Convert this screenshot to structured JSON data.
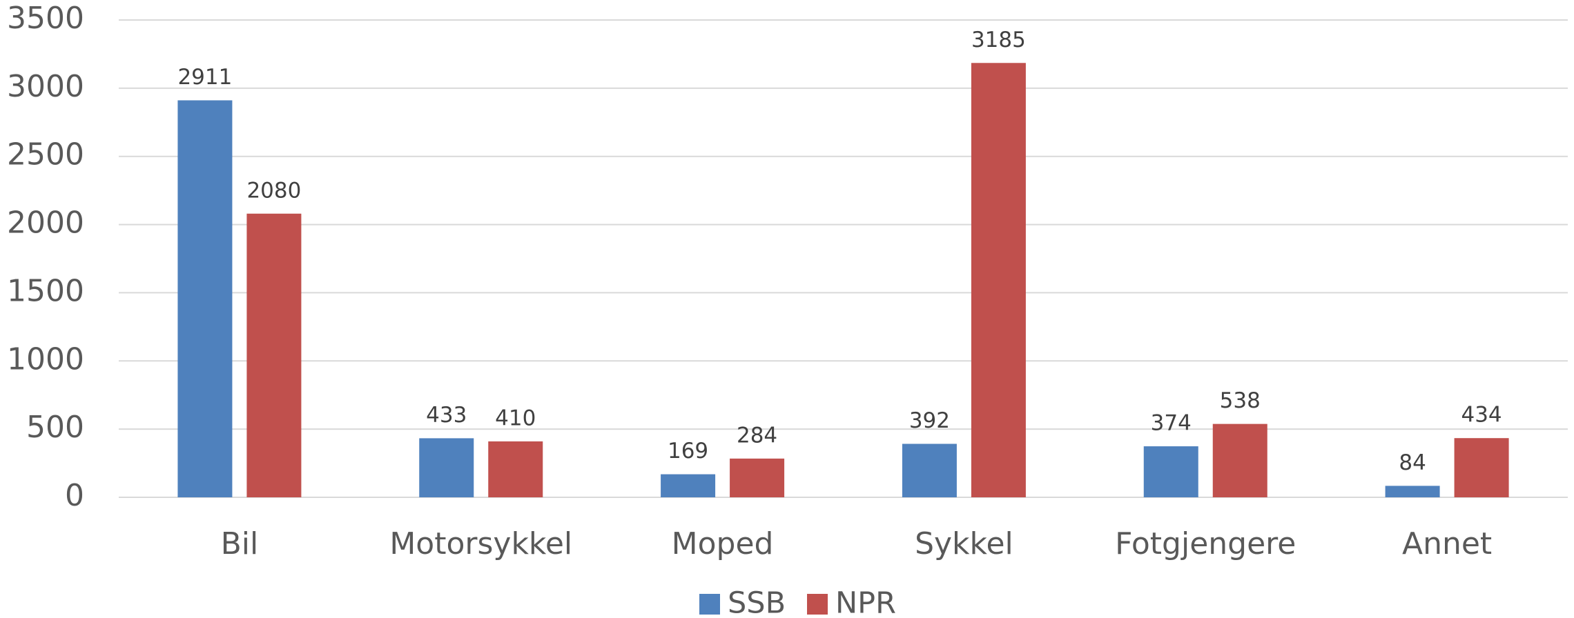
{
  "chart_data": {
    "type": "bar",
    "categories": [
      "Bil",
      "Motorsykkel",
      "Moped",
      "Sykkel",
      "Fotgjengere",
      "Annet"
    ],
    "series": [
      {
        "name": "SSB",
        "color": "#4f81bd",
        "values": [
          2911,
          433,
          169,
          392,
          374,
          84
        ]
      },
      {
        "name": "NPR",
        "color": "#c0504d",
        "values": [
          2080,
          410,
          284,
          3185,
          538,
          434
        ]
      }
    ],
    "ylim": [
      0,
      3500
    ],
    "yticks": [
      0,
      500,
      1000,
      1500,
      2000,
      2500,
      3000,
      3500
    ],
    "grid": true,
    "legend": "bottom"
  }
}
